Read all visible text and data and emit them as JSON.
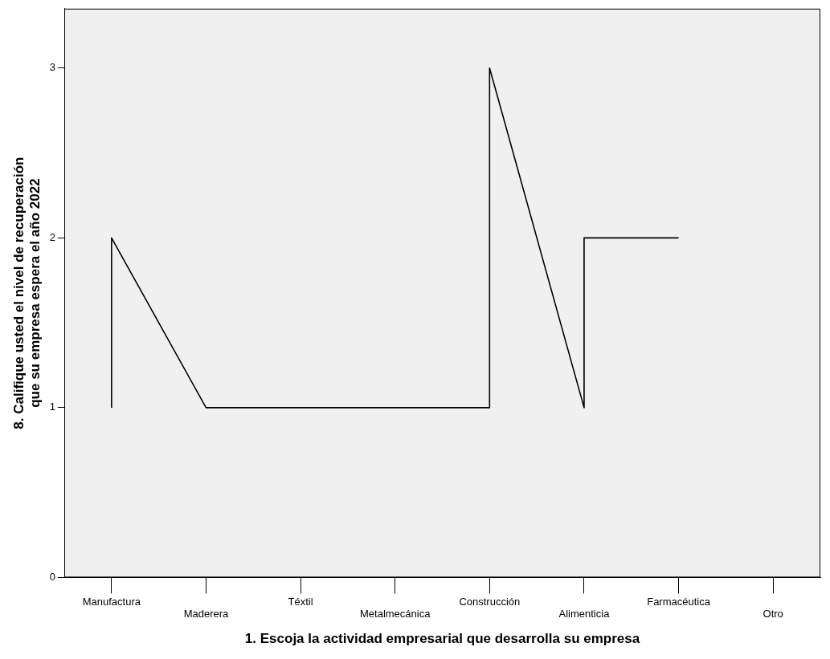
{
  "chart_data": {
    "type": "line",
    "xlabel": "1. Escoja la actividad empresarial que desarrolla su empresa",
    "ylabel": "8. Califique usted el nivel de recuperación que su empresa espera el año 2022",
    "categories": [
      "Manufactura",
      "Maderera",
      "Téxtil",
      "Metalmecánica",
      "Construcción",
      "Alimenticia",
      "Farmacéutica",
      "Otro"
    ],
    "series": [
      {
        "color": "#000000",
        "x": [
          "Manufactura",
          "Manufactura",
          "Maderera",
          "Téxtil",
          "Metalmecánica",
          "Construcción",
          "Construcción",
          "Alimenticia",
          "Alimenticia",
          "Farmacéutica"
        ],
        "values": [
          1,
          2,
          1,
          1,
          1,
          1,
          3,
          1,
          2,
          2
        ]
      }
    ],
    "ylim": [
      0,
      3.35
    ],
    "yticks": [
      0,
      1,
      2,
      3
    ],
    "grid": false,
    "legend": false,
    "marker": "none",
    "line_style": "solid"
  }
}
